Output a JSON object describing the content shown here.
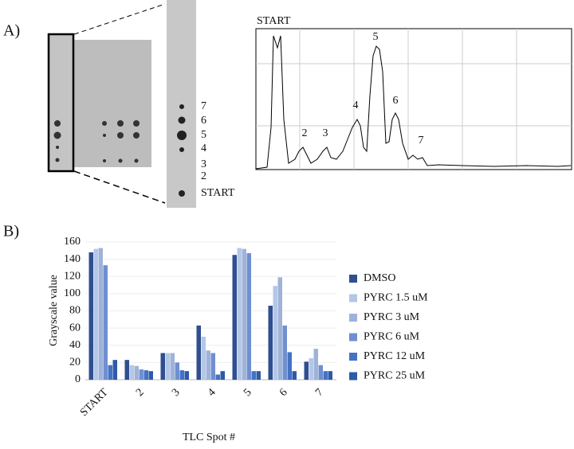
{
  "panel_a": {
    "label": "A)",
    "zoom_spot_labels": [
      "7",
      "6",
      "5",
      "4",
      "3",
      "2",
      "START"
    ],
    "trace_labels": [
      "START",
      "2",
      "3",
      "4",
      "5",
      "6",
      "7"
    ]
  },
  "panel_b_label": "B)",
  "chart_data": {
    "type": "bar",
    "y_label": "Grayscale value",
    "x_label": "TLC Spot #",
    "categories": [
      "START",
      "2",
      "3",
      "4",
      "5",
      "6",
      "7"
    ],
    "series": [
      {
        "name": "DMSO",
        "color": "#2f4f8f",
        "values": [
          148,
          23,
          31,
          63,
          145,
          86,
          21
        ]
      },
      {
        "name": "PYRC 1.5 uM",
        "color": "#b4c7e7",
        "values": [
          152,
          17,
          31,
          50,
          153,
          109,
          25
        ]
      },
      {
        "name": "PYRC 3 uM",
        "color": "#9fb3d9",
        "values": [
          153,
          16,
          31,
          34,
          152,
          119,
          36
        ]
      },
      {
        "name": "PYRC 6 uM",
        "color": "#6f8fd0",
        "values": [
          133,
          12,
          20,
          31,
          147,
          63,
          17
        ]
      },
      {
        "name": "PYRC 12 uM",
        "color": "#4472c4",
        "values": [
          17,
          11,
          11,
          6,
          10,
          32,
          10
        ]
      },
      {
        "name": "PYRC 25 uM",
        "color": "#2e5aa8",
        "values": [
          23,
          10,
          10,
          10,
          10,
          10,
          10
        ]
      }
    ],
    "ylim": [
      0,
      160
    ],
    "yticks": [
      0,
      20,
      40,
      60,
      80,
      100,
      120,
      140,
      160
    ],
    "grid": true
  }
}
